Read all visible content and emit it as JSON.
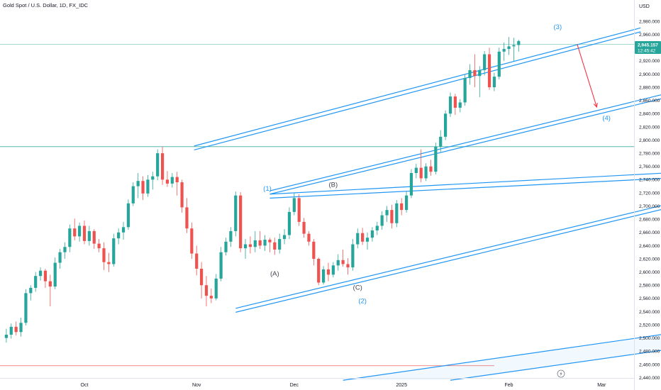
{
  "header": {
    "title": "Gold Spot / U.S. Dollar, 1D, FX_IDC",
    "currency": "USD"
  },
  "price_badge": {
    "price": "2,945.157",
    "countdown": "12:45:42"
  },
  "colors": {
    "up": "#26a69a",
    "down": "#ef5350",
    "channel": "#2196f3",
    "hline": "#26a69a",
    "wave_blue": "#2196f3",
    "wave_gray": "#434651",
    "arrow": "#f23645",
    "badge_bg": "#26a69a"
  },
  "icons": {
    "lightning": "lightning-icon"
  },
  "chart_data": {
    "type": "candlestick",
    "title": "Gold Spot / U.S. Dollar, 1D, FX_IDC",
    "xlabel": "",
    "ylabel": "USD",
    "ylim": [
      2432,
      3002
    ],
    "y_ticks": [
      2440,
      2460,
      2480,
      2500,
      2520,
      2540,
      2560,
      2580,
      2600,
      2620,
      2640,
      2660,
      2680,
      2700,
      2720,
      2740,
      2760,
      2780,
      2800,
      2820,
      2840,
      2860,
      2880,
      2900,
      2920,
      2940,
      2960,
      2980
    ],
    "y_tick_labels": [
      "2,440.000",
      "2,460.000",
      "2,480.000",
      "2,500.000",
      "2,520.000",
      "2,540.000",
      "2,560.000",
      "2,580.000",
      "2,600.000",
      "2,620.000",
      "2,640.000",
      "2,660.000",
      "2,680.000",
      "2,700.000",
      "2,720.000",
      "2,740.000",
      "2,760.000",
      "2,780.000",
      "2,800.000",
      "2,820.000",
      "2,840.000",
      "2,860.000",
      "2,880.000",
      "2,900.000",
      "2,920.000",
      "2,940.000",
      "2,960.000",
      "2,980.000"
    ],
    "x_ticks": [
      {
        "label": "Oct",
        "bar": 16
      },
      {
        "label": "Nov",
        "bar": 39
      },
      {
        "label": "Dec",
        "bar": 59
      },
      {
        "label": "2025",
        "bar": 81
      },
      {
        "label": "Feb",
        "bar": 103
      },
      {
        "label": "Mar",
        "bar": 122
      }
    ],
    "candles": [
      [
        2500,
        2514,
        2493,
        2505
      ],
      [
        2505,
        2522,
        2499,
        2517
      ],
      [
        2517,
        2525,
        2504,
        2509
      ],
      [
        2509,
        2531,
        2502,
        2523
      ],
      [
        2523,
        2574,
        2519,
        2568
      ],
      [
        2568,
        2580,
        2557,
        2576
      ],
      [
        2576,
        2600,
        2570,
        2594
      ],
      [
        2594,
        2607,
        2587,
        2602
      ],
      [
        2602,
        2605,
        2576,
        2586
      ],
      [
        2586,
        2596,
        2548,
        2578
      ],
      [
        2578,
        2622,
        2574,
        2614
      ],
      [
        2614,
        2635,
        2605,
        2630
      ],
      [
        2630,
        2645,
        2620,
        2638
      ],
      [
        2638,
        2672,
        2630,
        2666
      ],
      [
        2666,
        2681,
        2648,
        2654
      ],
      [
        2654,
        2675,
        2646,
        2670
      ],
      [
        2670,
        2678,
        2642,
        2647
      ],
      [
        2647,
        2670,
        2640,
        2662
      ],
      [
        2662,
        2665,
        2635,
        2643
      ],
      [
        2643,
        2650,
        2630,
        2636
      ],
      [
        2636,
        2645,
        2603,
        2615
      ],
      [
        2615,
        2629,
        2600,
        2612
      ],
      [
        2612,
        2658,
        2608,
        2651
      ],
      [
        2651,
        2666,
        2642,
        2660
      ],
      [
        2660,
        2676,
        2649,
        2668
      ],
      [
        2668,
        2710,
        2664,
        2704
      ],
      [
        2704,
        2736,
        2700,
        2730
      ],
      [
        2730,
        2750,
        2712,
        2738
      ],
      [
        2738,
        2745,
        2709,
        2719
      ],
      [
        2719,
        2747,
        2714,
        2740
      ],
      [
        2740,
        2752,
        2725,
        2745
      ],
      [
        2745,
        2786,
        2739,
        2780
      ],
      [
        2780,
        2790,
        2732,
        2740
      ],
      [
        2740,
        2753,
        2729,
        2734
      ],
      [
        2734,
        2750,
        2728,
        2744
      ],
      [
        2744,
        2752,
        2716,
        2736
      ],
      [
        2736,
        2740,
        2690,
        2698
      ],
      [
        2698,
        2712,
        2659,
        2666
      ],
      [
        2666,
        2675,
        2620,
        2628
      ],
      [
        2628,
        2640,
        2595,
        2605
      ],
      [
        2605,
        2615,
        2560,
        2580
      ],
      [
        2580,
        2594,
        2548,
        2564
      ],
      [
        2564,
        2575,
        2553,
        2560
      ],
      [
        2560,
        2597,
        2557,
        2590
      ],
      [
        2590,
        2638,
        2586,
        2630
      ],
      [
        2630,
        2652,
        2625,
        2646
      ],
      [
        2646,
        2668,
        2638,
        2662
      ],
      [
        2662,
        2722,
        2654,
        2716
      ],
      [
        2716,
        2721,
        2630,
        2636
      ],
      [
        2636,
        2650,
        2620,
        2642
      ],
      [
        2642,
        2654,
        2628,
        2638
      ],
      [
        2638,
        2662,
        2630,
        2648
      ],
      [
        2648,
        2662,
        2635,
        2640
      ],
      [
        2640,
        2656,
        2632,
        2649
      ],
      [
        2649,
        2652,
        2630,
        2645
      ],
      [
        2645,
        2652,
        2626,
        2634
      ],
      [
        2634,
        2658,
        2628,
        2650
      ],
      [
        2650,
        2665,
        2642,
        2656
      ],
      [
        2656,
        2698,
        2650,
        2691
      ],
      [
        2691,
        2720,
        2686,
        2712
      ],
      [
        2712,
        2718,
        2670,
        2676
      ],
      [
        2676,
        2682,
        2652,
        2658
      ],
      [
        2658,
        2662,
        2640,
        2646
      ],
      [
        2646,
        2650,
        2610,
        2620
      ],
      [
        2620,
        2622,
        2580,
        2584
      ],
      [
        2584,
        2609,
        2581,
        2604
      ],
      [
        2604,
        2614,
        2586,
        2596
      ],
      [
        2596,
        2615,
        2592,
        2610
      ],
      [
        2610,
        2627,
        2602,
        2618
      ],
      [
        2618,
        2634,
        2608,
        2612
      ],
      [
        2612,
        2621,
        2596,
        2607
      ],
      [
        2607,
        2650,
        2602,
        2642
      ],
      [
        2642,
        2666,
        2636,
        2659
      ],
      [
        2659,
        2667,
        2641,
        2646
      ],
      [
        2646,
        2660,
        2634,
        2652
      ],
      [
        2652,
        2668,
        2646,
        2663
      ],
      [
        2663,
        2676,
        2656,
        2670
      ],
      [
        2670,
        2692,
        2664,
        2686
      ],
      [
        2686,
        2700,
        2676,
        2694
      ],
      [
        2694,
        2702,
        2666,
        2674
      ],
      [
        2674,
        2709,
        2668,
        2704
      ],
      [
        2704,
        2712,
        2686,
        2694
      ],
      [
        2694,
        2722,
        2690,
        2716
      ],
      [
        2716,
        2756,
        2712,
        2750
      ],
      [
        2750,
        2764,
        2742,
        2758
      ],
      [
        2758,
        2786,
        2736,
        2742
      ],
      [
        2742,
        2765,
        2738,
        2760
      ],
      [
        2760,
        2770,
        2746,
        2752
      ],
      [
        2752,
        2796,
        2748,
        2790
      ],
      [
        2790,
        2815,
        2782,
        2805
      ],
      [
        2805,
        2845,
        2800,
        2840
      ],
      [
        2840,
        2872,
        2835,
        2866
      ],
      [
        2866,
        2870,
        2838,
        2849
      ],
      [
        2849,
        2862,
        2842,
        2857
      ],
      [
        2857,
        2900,
        2852,
        2894
      ],
      [
        2894,
        2915,
        2884,
        2906
      ],
      [
        2906,
        2930,
        2880,
        2897
      ],
      [
        2897,
        2912,
        2865,
        2906
      ],
      [
        2906,
        2935,
        2898,
        2930
      ],
      [
        2930,
        2940,
        2876,
        2880
      ],
      [
        2880,
        2902,
        2874,
        2896
      ],
      [
        2896,
        2940,
        2892,
        2934
      ],
      [
        2934,
        2948,
        2920,
        2938
      ],
      [
        2938,
        2956,
        2929,
        2942
      ],
      [
        2942,
        2955,
        2920,
        2944
      ],
      [
        2944,
        2952,
        2934,
        2950
      ]
    ],
    "horizontal_lines": [
      {
        "price": 2945.157,
        "color": "#26a69a"
      },
      {
        "price": 2790,
        "color": "#26a69a"
      },
      {
        "price": 2458,
        "color": "#ef5350"
      }
    ],
    "trend_lines": [
      {
        "from": [
          38.5,
          2791
        ],
        "to": [
          130,
          2970
        ]
      },
      {
        "from": [
          38.5,
          2785
        ],
        "to": [
          130,
          2964
        ]
      },
      {
        "from": [
          54,
          2718
        ],
        "to": [
          135,
          2864
        ]
      },
      {
        "from": [
          54,
          2723
        ],
        "to": [
          135,
          2870
        ]
      },
      {
        "from": [
          54,
          2718
        ],
        "to": [
          135,
          2750
        ]
      },
      {
        "from": [
          54,
          2712
        ],
        "to": [
          135,
          2742
        ]
      },
      {
        "from": [
          47,
          2545
        ],
        "to": [
          135,
          2702
        ]
      },
      {
        "from": [
          47,
          2539
        ],
        "to": [
          135,
          2696
        ]
      },
      {
        "from": [
          69,
          2436
        ],
        "to": [
          135,
          2506
        ]
      },
      {
        "from": [
          91,
          2436
        ],
        "to": [
          135,
          2482
        ]
      }
    ],
    "arrow": {
      "from": [
        117,
        2945
      ],
      "to": [
        121,
        2850
      ]
    },
    "wave_labels": [
      {
        "text": "(3)",
        "bar": 113,
        "price": 2968,
        "color": "#2196f3"
      },
      {
        "text": "(4)",
        "bar": 123,
        "price": 2830,
        "color": "#2196f3"
      },
      {
        "text": "(1)",
        "bar": 53.5,
        "price": 2723,
        "color": "#2196f3"
      },
      {
        "text": "(B)",
        "bar": 67,
        "price": 2729,
        "color": "#434651"
      },
      {
        "text": "(A)",
        "bar": 55,
        "price": 2594,
        "color": "#434651"
      },
      {
        "text": "(C)",
        "bar": 72,
        "price": 2573,
        "color": "#434651"
      },
      {
        "text": "(2)",
        "bar": 73,
        "price": 2553,
        "color": "#2196f3"
      }
    ]
  }
}
